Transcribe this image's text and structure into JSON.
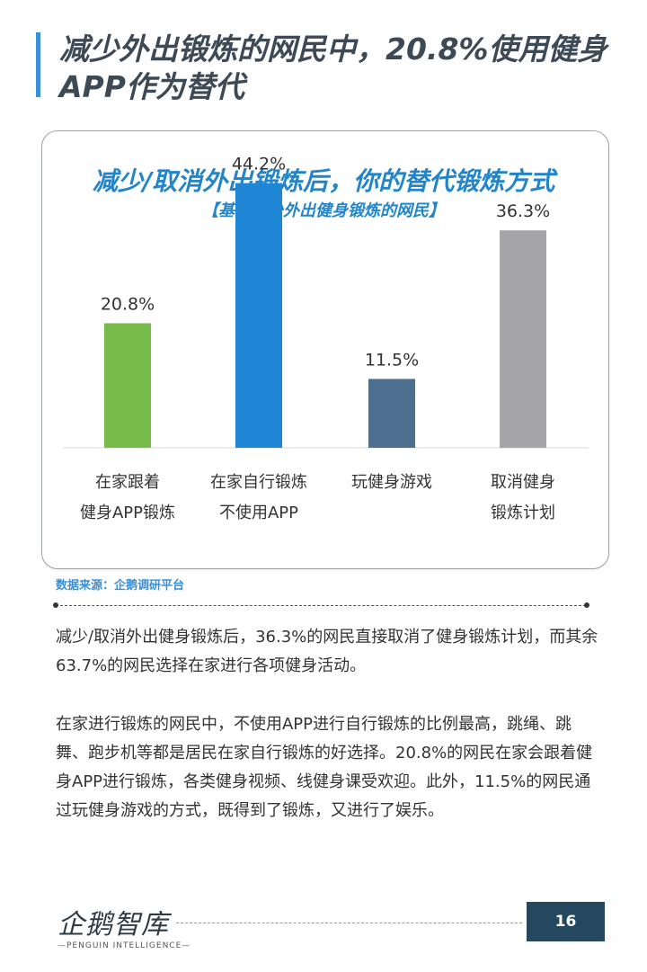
{
  "header": {
    "title": "减少外出锻炼的网民中，20.8%使用健身APP作为替代"
  },
  "chart_data": {
    "type": "bar",
    "title": "减少/取消外出锻炼后，你的替代锻炼方式",
    "subtitle": "【基于减少外出健身锻炼的网民】",
    "categories": [
      [
        "在家跟着",
        "健身APP锻炼"
      ],
      [
        "在家自行锻炼",
        "不使用APP"
      ],
      [
        "玩健身游戏"
      ],
      [
        "取消健身",
        "锻炼计划"
      ]
    ],
    "values": [
      20.8,
      44.2,
      11.5,
      36.3
    ],
    "value_labels": [
      "20.8%",
      "44.2%",
      "11.5%",
      "36.3%"
    ],
    "colors": [
      "#77bb4b",
      "#1e86d4",
      "#4d7091",
      "#a5a5a8"
    ],
    "ylim": [
      0,
      50
    ],
    "grid": false,
    "legend": "none"
  },
  "source": "数据来源：企鹅调研平台",
  "body": {
    "p1": "减少/取消外出健身锻炼后，36.3%的网民直接取消了健身锻炼计划，而其余63.7%的网民选择在家进行各项健身活动。",
    "p2": "在家进行锻炼的网民中，不使用APP进行自行锻炼的比例最高，跳绳、跳舞、跑步机等都是居民在家自行锻炼的好选择。20.8%的网民在家会跟着健身APP进行锻炼，各类健身视频、线健身课受欢迎。此外，11.5%的网民通过玩健身游戏的方式，既得到了锻炼，又进行了娱乐。"
  },
  "footer": {
    "logo": "企鹅智库",
    "logo_sub": "—PENGUIN INTELLIGENCE—",
    "page_number": "16"
  }
}
